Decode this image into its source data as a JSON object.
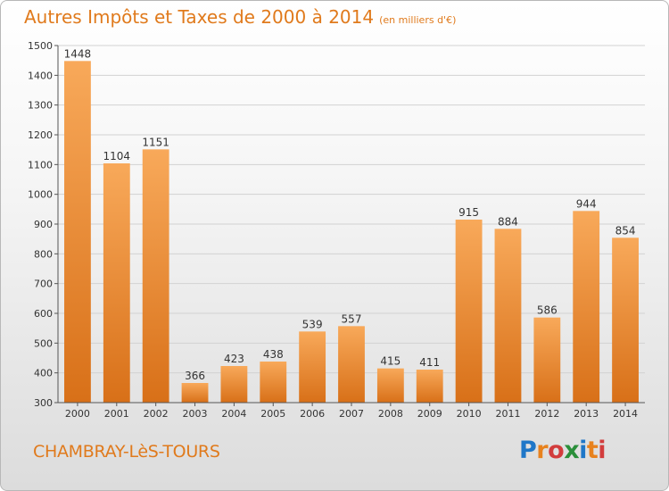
{
  "header": {
    "title": "Autres Impôts et Taxes de 2000 à 2014",
    "unit": "(en milliers d'€)"
  },
  "footer": {
    "commune": "CHAMBRAY-LèS-TOURS",
    "logo_letters": [
      "P",
      "r",
      "o",
      "x",
      "i",
      "t",
      "i"
    ],
    "logo_colors": [
      "#1f77c8",
      "#e8821e",
      "#d23c3c",
      "#2b8f3a",
      "#1f77c8",
      "#e8821e",
      "#d23c3c"
    ]
  },
  "chart_data": {
    "type": "bar",
    "categories": [
      "2000",
      "2001",
      "2002",
      "2003",
      "2004",
      "2005",
      "2006",
      "2007",
      "2008",
      "2009",
      "2010",
      "2011",
      "2012",
      "2013",
      "2014"
    ],
    "values": [
      1448,
      1104,
      1151,
      366,
      423,
      438,
      539,
      557,
      415,
      411,
      915,
      884,
      586,
      944,
      854
    ],
    "ylim": [
      300,
      1500
    ],
    "yticks": [
      300,
      400,
      500,
      600,
      700,
      800,
      900,
      1000,
      1100,
      1200,
      1300,
      1400,
      1500
    ],
    "grid": true,
    "bar_color_top": "#f8a95a",
    "bar_color_bottom": "#d87018"
  }
}
